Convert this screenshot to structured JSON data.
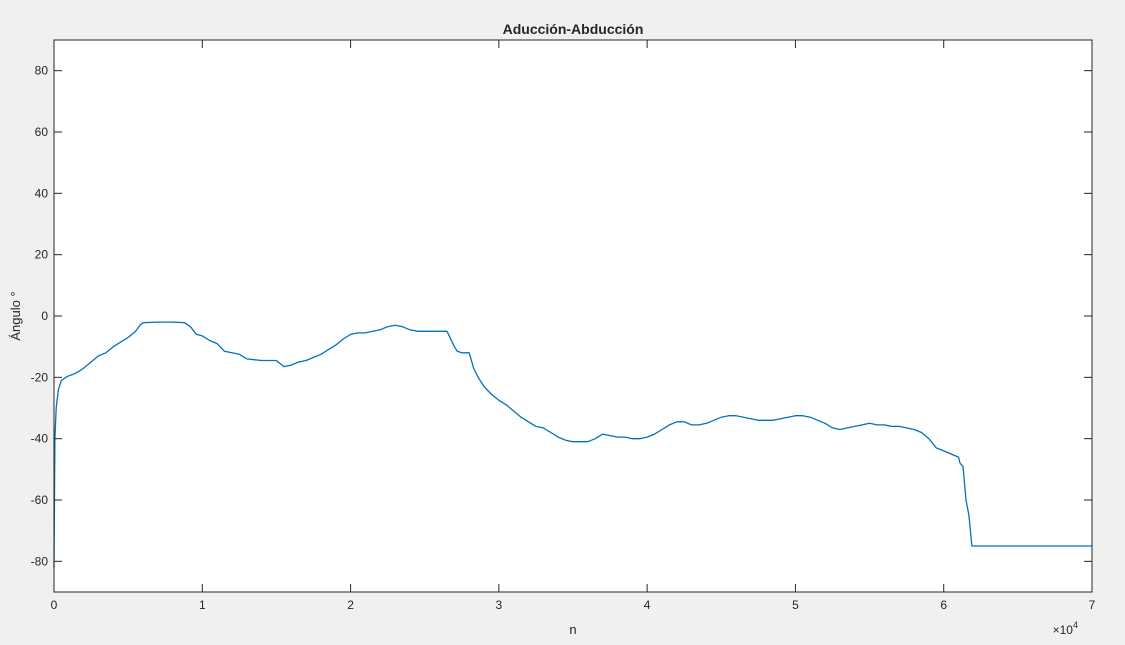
{
  "chart_data": {
    "type": "line",
    "title": "Aducción-Abducción",
    "xlabel": "n",
    "ylabel": "Ángulo °",
    "x_exponent_label": "×10",
    "x_exponent_power": "4",
    "xlim": [
      0,
      70000
    ],
    "ylim": [
      -90,
      90
    ],
    "x_ticks": [
      0,
      10000,
      20000,
      30000,
      40000,
      50000,
      60000,
      70000
    ],
    "x_tick_labels": [
      "0",
      "1",
      "2",
      "3",
      "4",
      "5",
      "6",
      "7"
    ],
    "y_ticks": [
      -80,
      -60,
      -40,
      -20,
      0,
      20,
      40,
      60,
      80
    ],
    "y_tick_labels": [
      "-80",
      "-60",
      "-40",
      "-20",
      "0",
      "20",
      "40",
      "60",
      "80"
    ],
    "grid": false,
    "line_color": "#0072bd",
    "series": [
      {
        "x": [
          0,
          60,
          150,
          300,
          500,
          800,
          1000,
          1300,
          1700,
          2000,
          2500,
          3000,
          3500,
          4000,
          4500,
          5000,
          5500,
          5800,
          6000,
          7000,
          8000,
          8800,
          9200,
          9600,
          10000,
          10500,
          11000,
          11500,
          12000,
          12500,
          13000,
          14000,
          15000,
          15500,
          16000,
          16500,
          17000,
          17500,
          18000,
          18500,
          19000,
          19500,
          20000,
          20500,
          21000,
          21500,
          22000,
          22500,
          23000,
          23500,
          24000,
          24500,
          25000,
          25500,
          26000,
          26500,
          27000,
          27200,
          27500,
          28000,
          28300,
          28600,
          29000,
          29500,
          30000,
          30500,
          31000,
          31500,
          32000,
          32500,
          33000,
          33500,
          34000,
          34500,
          35000,
          35500,
          36000,
          36500,
          37000,
          37500,
          38000,
          38500,
          39000,
          39500,
          40000,
          40500,
          41000,
          41500,
          42000,
          42500,
          43000,
          43500,
          44000,
          44500,
          45000,
          45500,
          46000,
          46500,
          47000,
          47500,
          48000,
          48500,
          49000,
          49500,
          50000,
          50500,
          51000,
          51500,
          52000,
          52500,
          53000,
          53500,
          54000,
          54500,
          55000,
          55500,
          56000,
          56500,
          57000,
          57500,
          58000,
          58500,
          59000,
          59500,
          60000,
          60500,
          61000,
          61100,
          61300,
          61500,
          61700,
          61800,
          61900,
          62000,
          65000,
          70000
        ],
        "y": [
          -82,
          -40,
          -30,
          -24,
          -21,
          -20,
          -19.5,
          -19,
          -18,
          -17,
          -15,
          -13,
          -12,
          -10,
          -8.5,
          -7,
          -5,
          -3,
          -2.2,
          -2,
          -2,
          -2.2,
          -3.5,
          -6,
          -6.5,
          -8,
          -9,
          -11.5,
          -12,
          -12.5,
          -14,
          -14.5,
          -14.5,
          -16.5,
          -16,
          -15,
          -14.5,
          -13.5,
          -12.5,
          -11,
          -9.5,
          -7.5,
          -6,
          -5.5,
          -5.5,
          -5,
          -4.5,
          -3.5,
          -3,
          -3.5,
          -4.5,
          -5,
          -5,
          -5,
          -5,
          -5,
          -10,
          -11.5,
          -12,
          -12,
          -17,
          -20,
          -23,
          -25.5,
          -27.5,
          -29,
          -31,
          -33,
          -34.5,
          -36,
          -36.5,
          -38,
          -39.5,
          -40.5,
          -41,
          -41,
          -41,
          -40,
          -38.5,
          -39,
          -39.5,
          -39.5,
          -40,
          -40,
          -39.5,
          -38.5,
          -37,
          -35.5,
          -34.5,
          -34.5,
          -35.5,
          -35.5,
          -35,
          -34,
          -33,
          -32.5,
          -32.5,
          -33,
          -33.5,
          -34,
          -34,
          -34,
          -33.5,
          -33,
          -32.5,
          -32.5,
          -33,
          -34,
          -35,
          -36.5,
          -37,
          -36.5,
          -36,
          -35.5,
          -35,
          -35.5,
          -35.5,
          -36,
          -36,
          -36.5,
          -37,
          -38,
          -40,
          -43,
          -44,
          -45,
          -46,
          -48,
          -49,
          -60,
          -65,
          -70,
          -75,
          -75,
          -75,
          -75
        ]
      }
    ]
  }
}
